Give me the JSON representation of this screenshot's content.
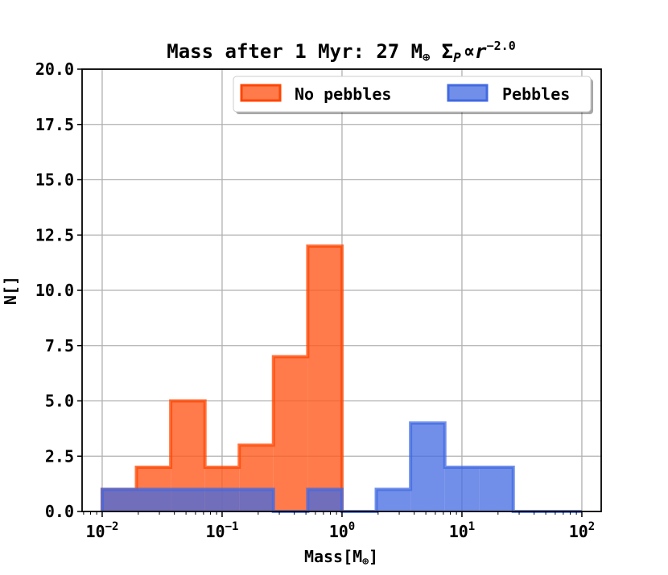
{
  "chart_data": {
    "type": "histogram",
    "title": {
      "prefix": "Mass after 1 Myr: 27 M",
      "sub": "⊕",
      "mid": " Σ",
      "sub2": "P",
      "prop": "∝",
      "r": "r",
      "exp": "−2.0"
    },
    "xlabel": {
      "text": "Mass[M",
      "sub": "⊕",
      "close": "]"
    },
    "ylabel": "N[]",
    "xscale": "log",
    "xlim": [
      0.0068,
      145
    ],
    "ylim": [
      0,
      20
    ],
    "x_ticks": [
      {
        "value": 0.01,
        "base": "10",
        "exp": "−2"
      },
      {
        "value": 0.1,
        "base": "10",
        "exp": "−1"
      },
      {
        "value": 1,
        "base": "10",
        "exp": "0"
      },
      {
        "value": 10,
        "base": "10",
        "exp": "1"
      },
      {
        "value": 100,
        "base": "10",
        "exp": "2"
      }
    ],
    "y_ticks": [
      "0.0",
      "2.5",
      "5.0",
      "7.5",
      "10.0",
      "12.5",
      "15.0",
      "17.5",
      "20.0"
    ],
    "grid": true,
    "legend": {
      "placement": "top-right",
      "columns": 2
    },
    "series": [
      {
        "name": "No pebbles",
        "fill": "#ff5a1f",
        "edge": "#ff4500",
        "bins": [
          {
            "x0": 0.01,
            "x1": 0.0193,
            "count": 1
          },
          {
            "x0": 0.0193,
            "x1": 0.0373,
            "count": 2
          },
          {
            "x0": 0.0373,
            "x1": 0.072,
            "count": 5
          },
          {
            "x0": 0.072,
            "x1": 0.139,
            "count": 2
          },
          {
            "x0": 0.139,
            "x1": 0.268,
            "count": 3
          },
          {
            "x0": 0.268,
            "x1": 0.518,
            "count": 7
          },
          {
            "x0": 0.518,
            "x1": 1.0,
            "count": 12
          }
        ]
      },
      {
        "name": "Pebbles",
        "fill": "#4169e1",
        "edge": "#4169e1",
        "bins": [
          {
            "x0": 0.01,
            "x1": 0.0193,
            "count": 1
          },
          {
            "x0": 0.0193,
            "x1": 0.0373,
            "count": 1
          },
          {
            "x0": 0.0373,
            "x1": 0.072,
            "count": 1
          },
          {
            "x0": 0.072,
            "x1": 0.139,
            "count": 1
          },
          {
            "x0": 0.139,
            "x1": 0.268,
            "count": 1
          },
          {
            "x0": 0.268,
            "x1": 0.518,
            "count": 0
          },
          {
            "x0": 0.518,
            "x1": 1.0,
            "count": 1
          },
          {
            "x0": 1.0,
            "x1": 1.93,
            "count": 0
          },
          {
            "x0": 1.93,
            "x1": 3.73,
            "count": 1
          },
          {
            "x0": 3.73,
            "x1": 7.2,
            "count": 4
          },
          {
            "x0": 7.2,
            "x1": 13.9,
            "count": 2
          },
          {
            "x0": 13.9,
            "x1": 26.8,
            "count": 2
          },
          {
            "x0": 26.8,
            "x1": 51.8,
            "count": 0
          },
          {
            "x0": 51.8,
            "x1": 100,
            "count": 0
          }
        ]
      }
    ]
  }
}
